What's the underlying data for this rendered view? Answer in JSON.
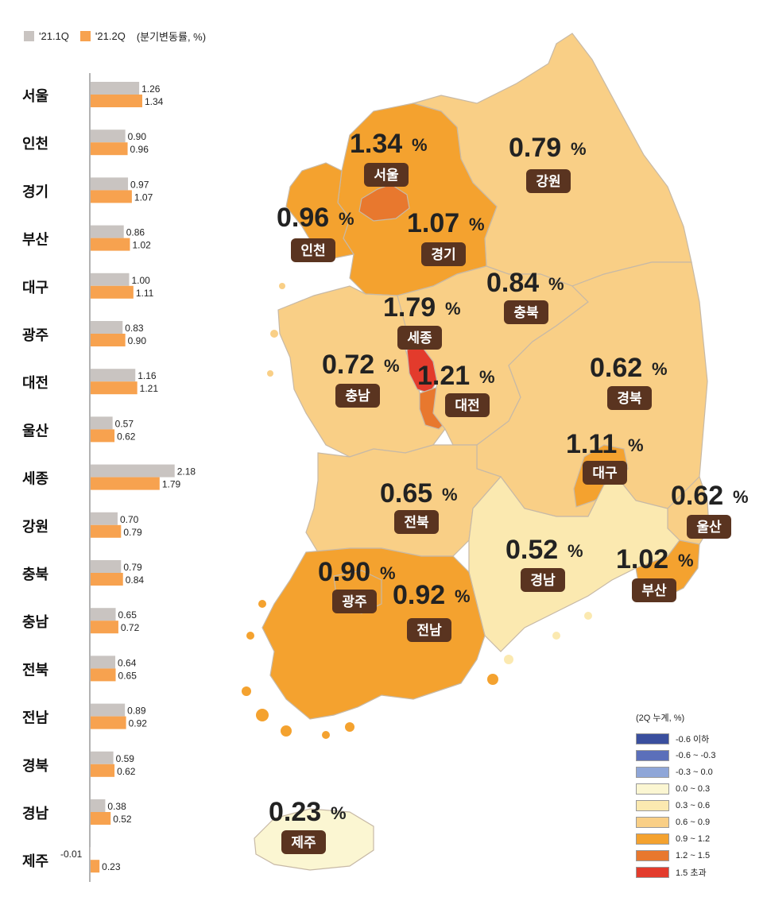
{
  "legend": {
    "series1": "'21.1Q",
    "series2": "'21.2Q",
    "unit": "(분기변동률, %)",
    "color1": "#c9c4c1",
    "color2": "#f7a24f"
  },
  "chart_data": {
    "type": "bar",
    "categories": [
      "서울",
      "인천",
      "경기",
      "부산",
      "대구",
      "광주",
      "대전",
      "울산",
      "세종",
      "강원",
      "충북",
      "충남",
      "전북",
      "전남",
      "경북",
      "경남",
      "제주"
    ],
    "series": [
      {
        "name": "'21.1Q",
        "values": [
          1.26,
          0.9,
          0.97,
          0.86,
          1.0,
          0.83,
          1.16,
          0.57,
          2.18,
          0.7,
          0.79,
          0.65,
          0.64,
          0.89,
          0.59,
          0.38,
          -0.01
        ]
      },
      {
        "name": "'21.2Q",
        "values": [
          1.34,
          0.96,
          1.07,
          1.02,
          1.11,
          0.9,
          1.21,
          0.62,
          1.79,
          0.79,
          0.84,
          0.72,
          0.65,
          0.92,
          0.62,
          0.52,
          0.23
        ]
      }
    ],
    "value_labels_1": [
      "1.26",
      "0.90",
      "0.97",
      "0.86",
      "1.00",
      "0.83",
      "1.16",
      "0.57",
      "2.18",
      "0.70",
      "0.79",
      "0.65",
      "0.64",
      "0.89",
      "0.59",
      "0.38",
      "-0.01"
    ],
    "value_labels_2": [
      "1.34",
      "0.96",
      "1.07",
      "1.02",
      "1.11",
      "0.90",
      "1.21",
      "0.62",
      "1.79",
      "0.79",
      "0.84",
      "0.72",
      "0.65",
      "0.92",
      "0.62",
      "0.52",
      "0.23"
    ]
  },
  "map_labels": [
    {
      "name": "서울",
      "pct": "1.34",
      "sign": "%"
    },
    {
      "name": "인천",
      "pct": "0.96",
      "sign": "%"
    },
    {
      "name": "경기",
      "pct": "1.07",
      "sign": "%"
    },
    {
      "name": "강원",
      "pct": "0.79",
      "sign": "%"
    },
    {
      "name": "충북",
      "pct": "0.84",
      "sign": "%"
    },
    {
      "name": "세종",
      "pct": "1.79",
      "sign": "%"
    },
    {
      "name": "충남",
      "pct": "0.72",
      "sign": "%"
    },
    {
      "name": "대전",
      "pct": "1.21",
      "sign": "%"
    },
    {
      "name": "경북",
      "pct": "0.62",
      "sign": "%"
    },
    {
      "name": "대구",
      "pct": "1.11",
      "sign": "%"
    },
    {
      "name": "전북",
      "pct": "0.65",
      "sign": "%"
    },
    {
      "name": "울산",
      "pct": "0.62",
      "sign": "%"
    },
    {
      "name": "경남",
      "pct": "0.52",
      "sign": "%"
    },
    {
      "name": "부산",
      "pct": "1.02",
      "sign": "%"
    },
    {
      "name": "광주",
      "pct": "0.90",
      "sign": "%"
    },
    {
      "name": "전남",
      "pct": "0.92",
      "sign": "%"
    },
    {
      "name": "제주",
      "pct": "0.23",
      "sign": "%"
    }
  ],
  "scale": {
    "title": "(2Q 누계, %)",
    "items": [
      {
        "label": "-0.6 이하",
        "color": "#3a4f9e"
      },
      {
        "label": "-0.6 ~ -0.3",
        "color": "#5b6fba"
      },
      {
        "label": "-0.3 ~ 0.0",
        "color": "#8fa6d8"
      },
      {
        "label": "0.0 ~ 0.3",
        "color": "#fbf6d2"
      },
      {
        "label": "0.3 ~ 0.6",
        "color": "#fbe9b0"
      },
      {
        "label": "0.6 ~ 0.9",
        "color": "#f9cf86"
      },
      {
        "label": "0.9 ~ 1.2",
        "color": "#f4a22f"
      },
      {
        "label": "1.2 ~ 1.5",
        "color": "#e8782e"
      },
      {
        "label": "1.5 초과",
        "color": "#e33b2c"
      }
    ]
  },
  "colors": {
    "tag_bg": "#5a3420",
    "outline": "#9a8d80"
  }
}
